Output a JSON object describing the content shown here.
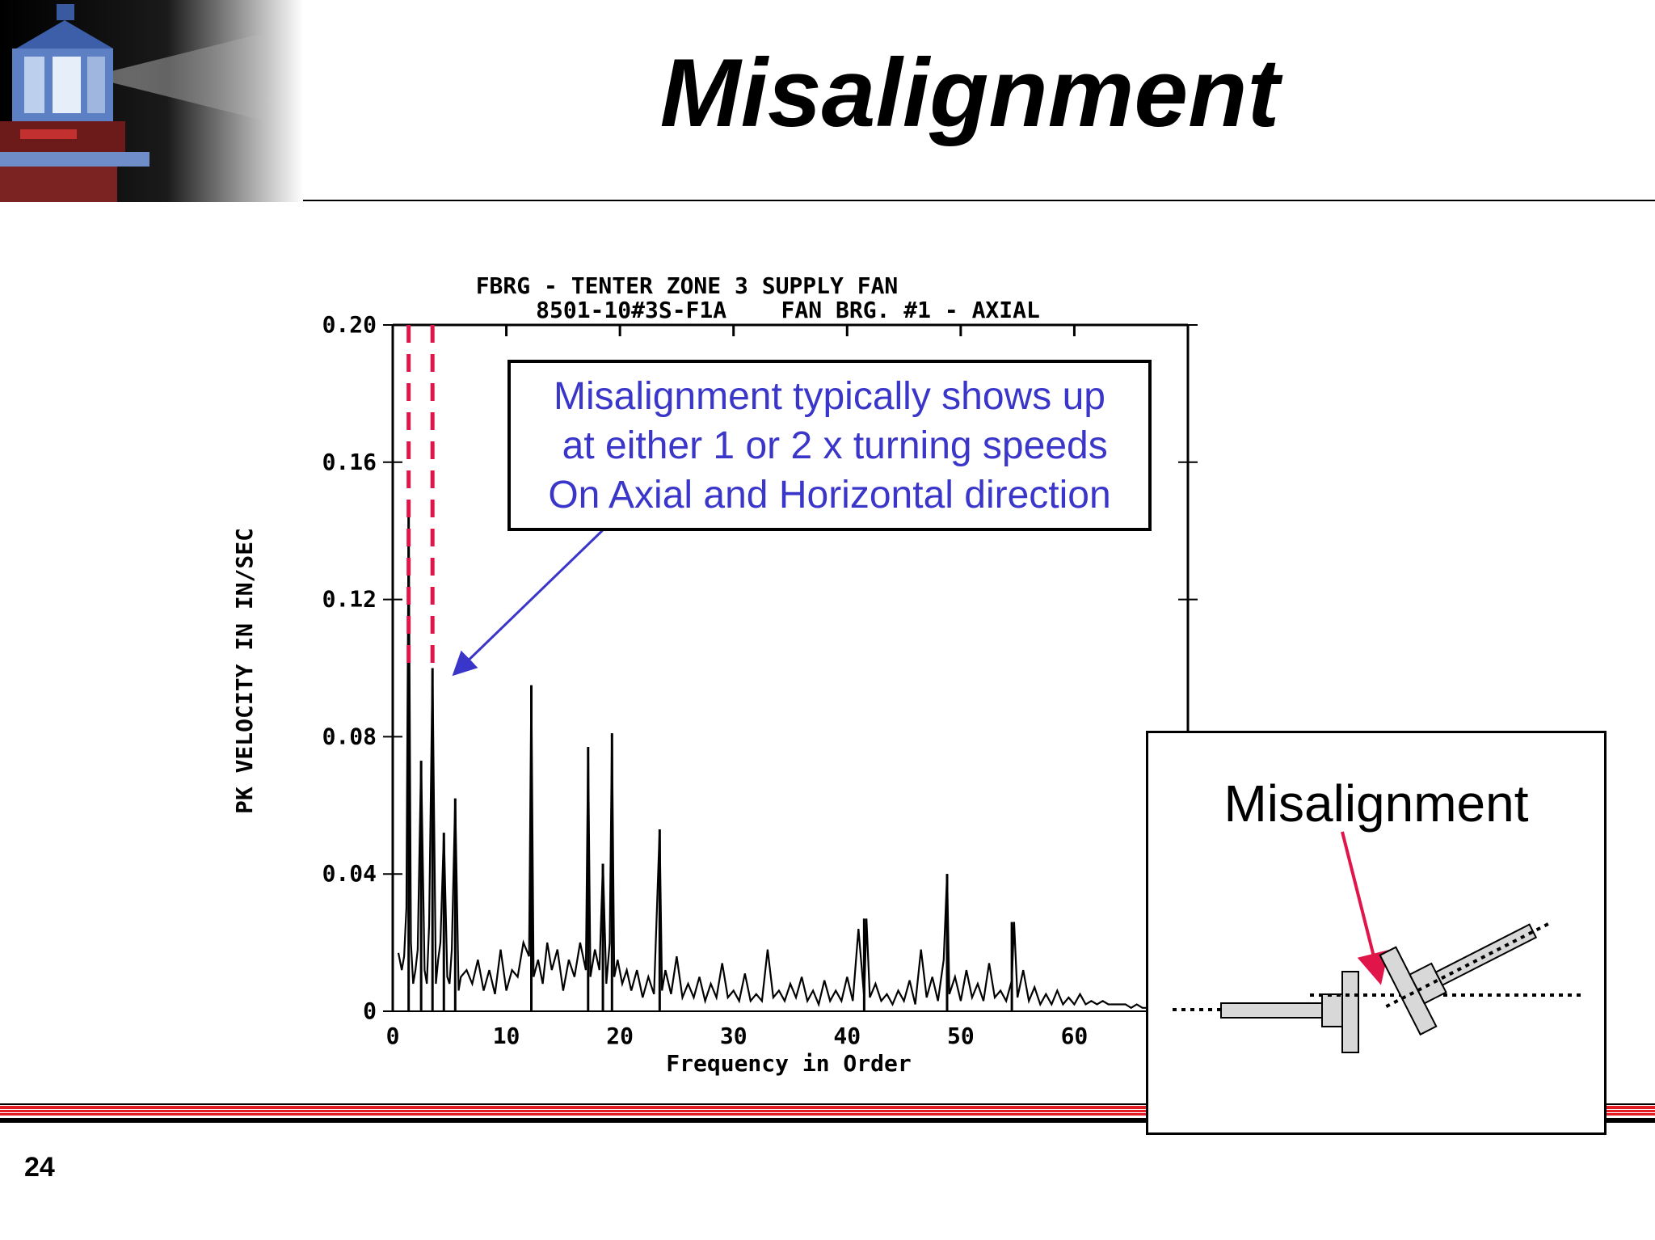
{
  "slide": {
    "title": "Misalignment",
    "page_number": "24"
  },
  "callout": {
    "text": "Misalignment typically shows up\n at either 1 or 2 x turning speeds\nOn Axial and Horizontal direction",
    "color": "#3a36c9"
  },
  "inset": {
    "label": "Misalignment",
    "arrow_color": "#e0154a"
  },
  "colors": {
    "marker_lines": "#e0154a",
    "footer_red": "#e31b23"
  },
  "chart_data": {
    "type": "line",
    "title": "FBRG - TENTER ZONE 3 SUPPLY FAN",
    "subtitle": "8501-10#3S-F1A    FAN BRG. #1 - AXIAL",
    "xlabel": "Frequency in Order",
    "ylabel": "PK VELOCITY IN IN/SEC",
    "xlim": [
      0,
      70
    ],
    "ylim": [
      0,
      0.2
    ],
    "x_ticks": [
      0,
      10,
      20,
      30,
      40,
      50,
      60
    ],
    "x_tick_labels": [
      "0",
      "10",
      "20",
      "30",
      "40",
      "50",
      "60"
    ],
    "y_ticks": [
      0,
      0.04,
      0.08,
      0.12,
      0.16,
      0.2
    ],
    "y_tick_labels": [
      "0",
      "0.04",
      "0.08",
      "0.12",
      "0.16",
      "0.20"
    ],
    "marker_lines_x": [
      1.4,
      3.5
    ],
    "peaks": [
      {
        "x": 1.4,
        "y": 0.148
      },
      {
        "x": 2.5,
        "y": 0.073
      },
      {
        "x": 3.5,
        "y": 0.1
      },
      {
        "x": 4.5,
        "y": 0.052
      },
      {
        "x": 5.5,
        "y": 0.062
      },
      {
        "x": 12.2,
        "y": 0.095
      },
      {
        "x": 17.2,
        "y": 0.077
      },
      {
        "x": 18.5,
        "y": 0.043
      },
      {
        "x": 19.3,
        "y": 0.081
      },
      {
        "x": 23.5,
        "y": 0.053
      },
      {
        "x": 41.5,
        "y": 0.027
      },
      {
        "x": 48.8,
        "y": 0.04
      },
      {
        "x": 54.5,
        "y": 0.026
      }
    ],
    "series": [
      {
        "x": [
          0.5,
          0.8,
          1.0,
          1.2,
          1.4,
          1.6,
          1.8,
          2.0,
          2.2,
          2.5,
          2.8,
          3.0,
          3.2,
          3.5,
          3.8,
          4.0,
          4.2,
          4.5,
          4.8,
          5.0,
          5.2,
          5.5,
          5.8,
          6.0,
          6.5,
          7.0,
          7.5,
          8.0,
          8.5,
          9.0,
          9.5,
          10.0,
          10.5,
          11.0,
          11.5,
          12.0,
          12.2,
          12.4,
          12.8,
          13.2,
          13.6,
          14.0,
          14.5,
          15.0,
          15.5,
          16.0,
          16.5,
          17.0,
          17.2,
          17.4,
          17.8,
          18.2,
          18.5,
          18.8,
          19.1,
          19.3,
          19.5,
          19.8,
          20.2,
          20.6,
          21.0,
          21.5,
          22.0,
          22.5,
          23.0,
          23.5,
          23.7,
          24.0,
          24.5,
          25.0,
          25.5,
          26.0,
          26.5,
          27.0,
          27.5,
          28.0,
          28.5,
          29.0,
          29.5,
          30.0,
          30.5,
          31.0,
          31.5,
          32.0,
          32.5,
          33.0,
          33.5,
          34.0,
          34.5,
          35.0,
          35.5,
          36.0,
          36.5,
          37.0,
          37.5,
          38.0,
          38.5,
          39.0,
          39.5,
          40.0,
          40.5,
          41.0,
          41.5,
          41.7,
          42.0,
          42.5,
          43.0,
          43.5,
          44.0,
          44.5,
          45.0,
          45.5,
          46.0,
          46.5,
          47.0,
          47.5,
          48.0,
          48.5,
          48.8,
          49.0,
          49.5,
          50.0,
          50.5,
          51.0,
          51.5,
          52.0,
          52.5,
          53.0,
          53.5,
          54.0,
          54.5,
          54.7,
          55.0,
          55.5,
          56.0,
          56.5,
          57.0,
          57.5,
          58.0,
          58.5,
          59.0,
          59.5,
          60.0,
          60.5,
          61.0,
          61.5,
          62.0,
          62.5,
          63.0,
          63.5,
          64.0,
          64.5,
          65.0,
          65.5,
          66.0,
          66.5,
          67.0
        ],
        "y": [
          0.017,
          0.012,
          0.016,
          0.03,
          0.148,
          0.02,
          0.008,
          0.012,
          0.018,
          0.073,
          0.012,
          0.008,
          0.025,
          0.1,
          0.008,
          0.015,
          0.02,
          0.052,
          0.01,
          0.008,
          0.018,
          0.062,
          0.006,
          0.01,
          0.012,
          0.008,
          0.015,
          0.006,
          0.012,
          0.005,
          0.018,
          0.006,
          0.012,
          0.01,
          0.02,
          0.016,
          0.095,
          0.01,
          0.015,
          0.008,
          0.02,
          0.012,
          0.018,
          0.006,
          0.015,
          0.01,
          0.02,
          0.012,
          0.077,
          0.01,
          0.018,
          0.012,
          0.043,
          0.008,
          0.02,
          0.081,
          0.01,
          0.015,
          0.008,
          0.012,
          0.006,
          0.012,
          0.004,
          0.01,
          0.005,
          0.053,
          0.006,
          0.012,
          0.005,
          0.016,
          0.004,
          0.008,
          0.004,
          0.01,
          0.003,
          0.008,
          0.004,
          0.014,
          0.004,
          0.006,
          0.003,
          0.011,
          0.003,
          0.005,
          0.003,
          0.018,
          0.004,
          0.006,
          0.003,
          0.008,
          0.004,
          0.01,
          0.003,
          0.006,
          0.002,
          0.009,
          0.003,
          0.006,
          0.003,
          0.01,
          0.003,
          0.024,
          0.004,
          0.027,
          0.004,
          0.008,
          0.003,
          0.005,
          0.002,
          0.006,
          0.003,
          0.009,
          0.002,
          0.018,
          0.004,
          0.01,
          0.003,
          0.015,
          0.04,
          0.005,
          0.01,
          0.003,
          0.012,
          0.004,
          0.008,
          0.003,
          0.014,
          0.004,
          0.006,
          0.003,
          0.009,
          0.026,
          0.004,
          0.012,
          0.003,
          0.007,
          0.002,
          0.005,
          0.002,
          0.006,
          0.002,
          0.004,
          0.002,
          0.005,
          0.002,
          0.003,
          0.002,
          0.003,
          0.002,
          0.002,
          0.002,
          0.002,
          0.001,
          0.002,
          0.001,
          0.001,
          0.002
        ]
      }
    ],
    "grid": false
  }
}
